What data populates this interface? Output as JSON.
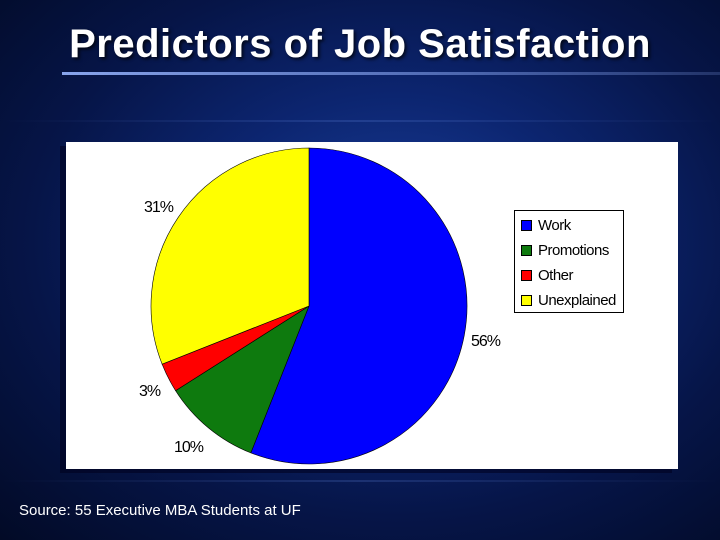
{
  "slide": {
    "title": "Predictors of Job Satisfaction",
    "source": "Source: 55 Executive MBA Students at UF"
  },
  "chart_data": {
    "type": "pie",
    "categories": [
      "Work",
      "Promotions",
      "Other",
      "Unexplained"
    ],
    "values": [
      56,
      10,
      3,
      31
    ],
    "value_labels": [
      "56%",
      "10%",
      "3%",
      "31%"
    ],
    "colors": [
      "#0000ff",
      "#0e7a0e",
      "#ff0000",
      "#ffff00"
    ],
    "start_angle_deg": 0,
    "direction": "clockwise",
    "legend": "right",
    "title": ""
  }
}
